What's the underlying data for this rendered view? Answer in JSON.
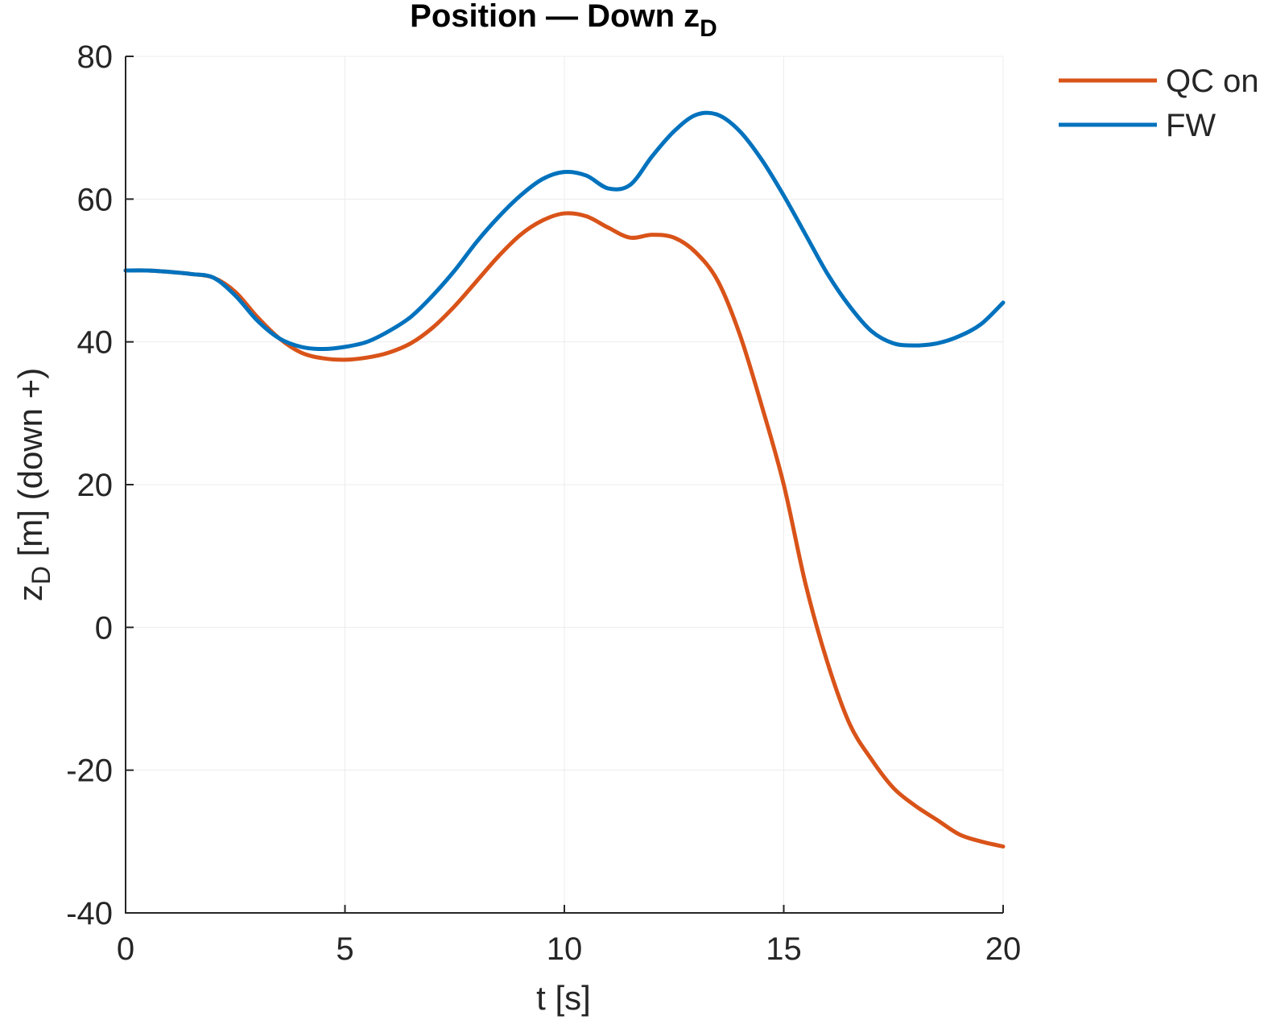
{
  "chart_data": {
    "type": "line",
    "title": "Position — Down z",
    "title_subscript": "D",
    "xlabel": "t [s]",
    "ylabel_main": "z",
    "ylabel_subscript": "D",
    "ylabel_rest": " [m] (down +)",
    "xlim": [
      0,
      20
    ],
    "ylim": [
      -40,
      80
    ],
    "xticks": [
      0,
      5,
      10,
      15,
      20
    ],
    "xtick_labels": [
      "0",
      "5",
      "10",
      "15",
      "20"
    ],
    "yticks": [
      -40,
      -20,
      0,
      20,
      40,
      60,
      80
    ],
    "ytick_labels": [
      "-40",
      "-20",
      "0",
      "20",
      "40",
      "60",
      "80"
    ],
    "grid": true,
    "legend_position": "top-right outside",
    "series": [
      {
        "name": "QC on",
        "color": "#D95319",
        "x": [
          0,
          0.5,
          1,
          1.5,
          2,
          2.5,
          3,
          3.5,
          4,
          4.5,
          5,
          5.5,
          6,
          6.5,
          7,
          7.5,
          8,
          8.5,
          9,
          9.5,
          10,
          10.5,
          11,
          11.5,
          12,
          12.5,
          13,
          13.5,
          14,
          14.5,
          15,
          15.5,
          16,
          16.5,
          17,
          17.5,
          18,
          18.5,
          19,
          19.5,
          20
        ],
        "y": [
          50,
          50,
          49.8,
          49.5,
          49,
          47,
          43.5,
          40.5,
          38.5,
          37.7,
          37.5,
          37.8,
          38.5,
          39.8,
          42,
          45,
          48.5,
          52,
          55,
          57,
          58,
          57.6,
          56,
          54.6,
          55,
          54.6,
          52.5,
          48.5,
          41,
          31,
          20,
          6,
          -5,
          -13.5,
          -18.5,
          -22.5,
          -25,
          -27,
          -29,
          -30,
          -30.7
        ]
      },
      {
        "name": "FW",
        "color": "#0072BD",
        "x": [
          0,
          0.5,
          1,
          1.5,
          2,
          2.5,
          3,
          3.5,
          4,
          4.5,
          5,
          5.5,
          6,
          6.5,
          7,
          7.5,
          8,
          8.5,
          9,
          9.5,
          10,
          10.5,
          11,
          11.5,
          12,
          12.5,
          13,
          13.5,
          14,
          14.5,
          15,
          15.5,
          16,
          16.5,
          17,
          17.5,
          18,
          18.5,
          19,
          19.5,
          20
        ],
        "y": [
          50,
          50,
          49.8,
          49.5,
          49,
          46.5,
          43,
          40.5,
          39.3,
          39,
          39.3,
          40,
          41.5,
          43.5,
          46.5,
          50,
          54,
          57.5,
          60.5,
          62.8,
          63.8,
          63.3,
          61.5,
          62,
          66,
          69.5,
          71.8,
          71.8,
          69.5,
          65.5,
          60.5,
          55,
          49.5,
          45,
          41.5,
          39.8,
          39.5,
          39.8,
          40.8,
          42.5,
          45.5
        ]
      }
    ]
  }
}
